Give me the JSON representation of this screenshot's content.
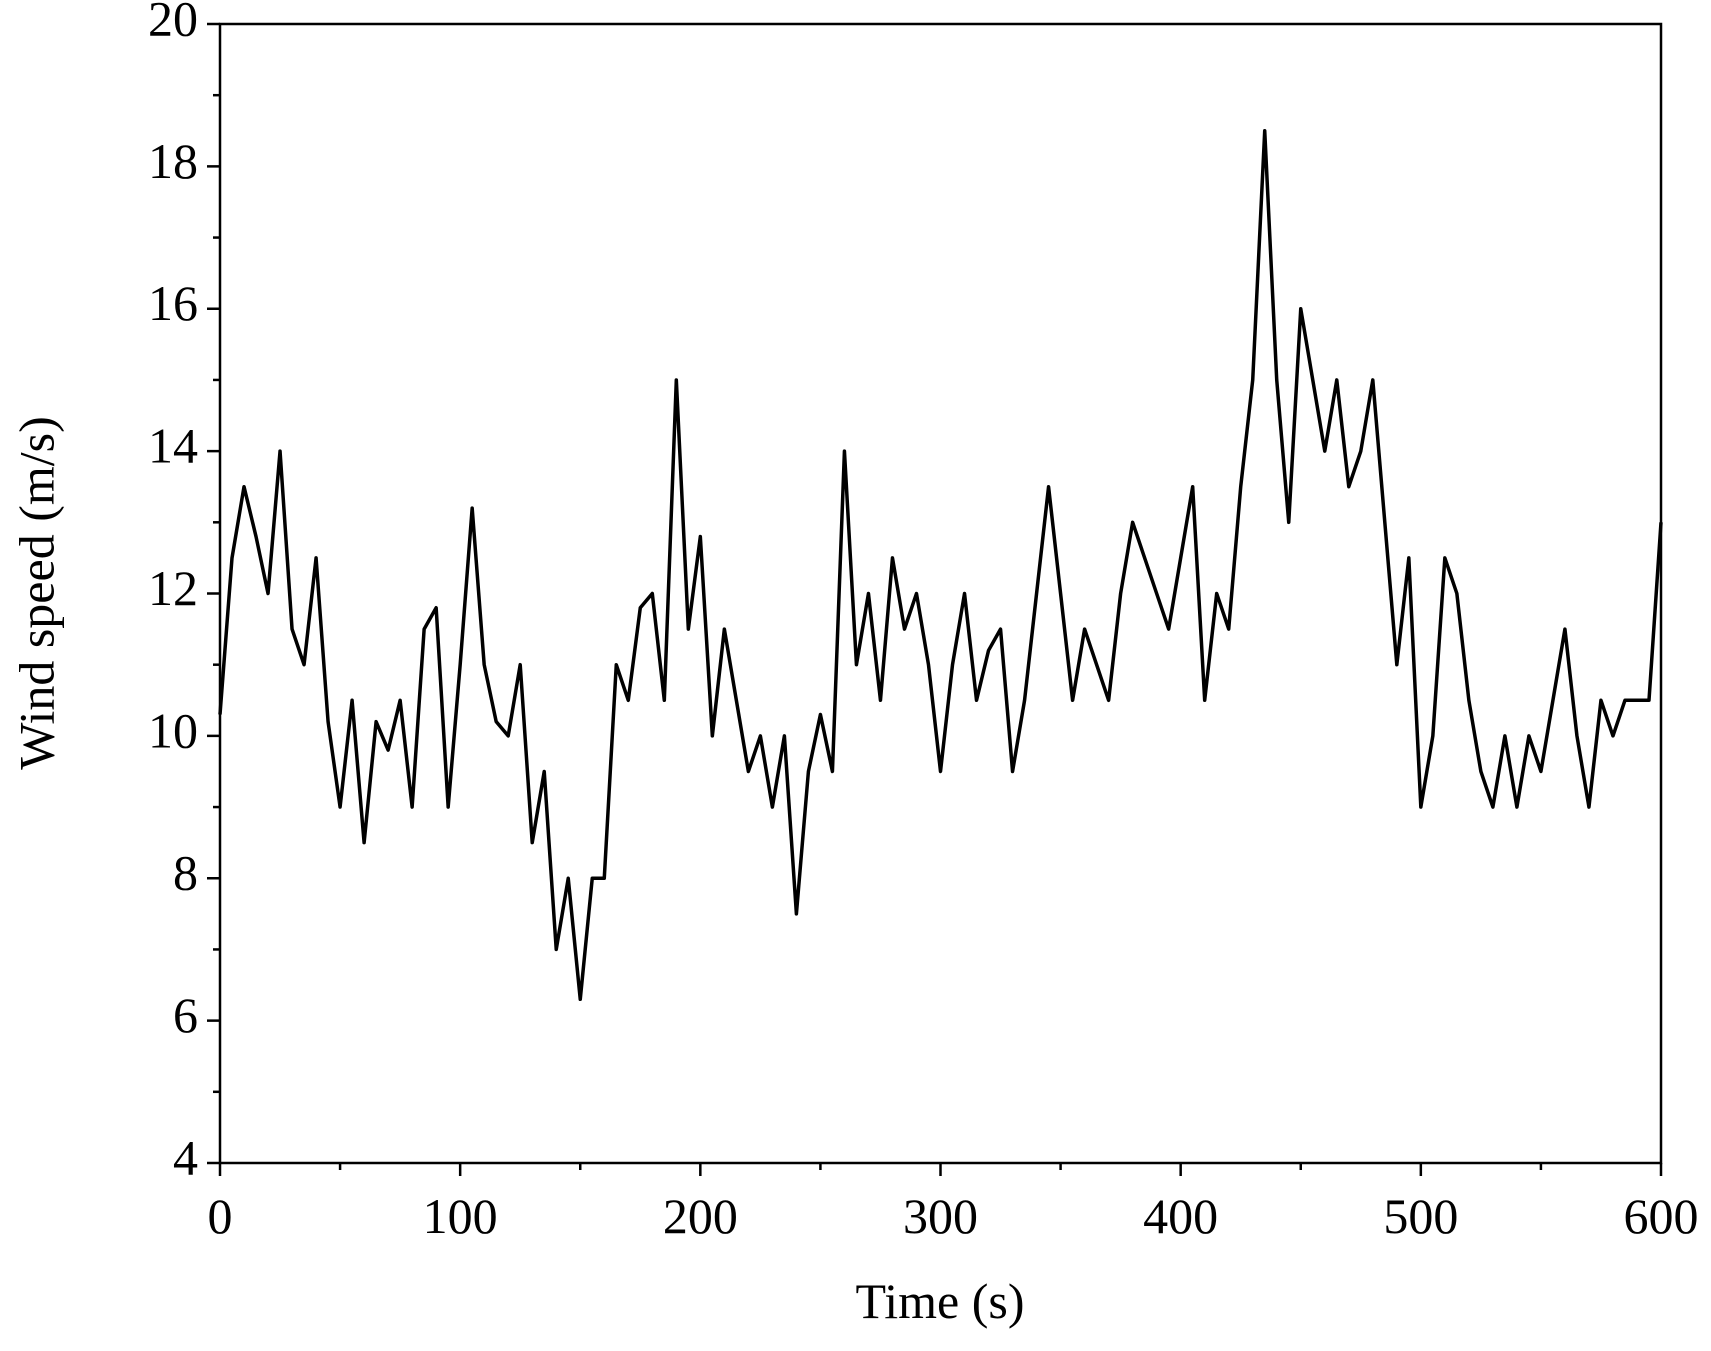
{
  "chart_data": {
    "type": "line",
    "xlabel": "Time (s)",
    "ylabel": "Wind speed (m/s)",
    "x": [
      0,
      5,
      10,
      15,
      20,
      25,
      30,
      35,
      40,
      45,
      50,
      55,
      60,
      65,
      70,
      75,
      80,
      85,
      90,
      95,
      100,
      105,
      110,
      115,
      120,
      125,
      130,
      135,
      140,
      145,
      150,
      155,
      160,
      165,
      170,
      175,
      180,
      185,
      190,
      195,
      200,
      205,
      210,
      215,
      220,
      225,
      230,
      235,
      240,
      245,
      250,
      255,
      260,
      265,
      270,
      275,
      280,
      285,
      290,
      295,
      300,
      305,
      310,
      315,
      320,
      325,
      330,
      335,
      340,
      345,
      350,
      355,
      360,
      365,
      370,
      375,
      380,
      385,
      390,
      395,
      400,
      405,
      410,
      415,
      420,
      425,
      430,
      435,
      440,
      445,
      450,
      455,
      460,
      465,
      470,
      475,
      480,
      485,
      490,
      495,
      500,
      505,
      510,
      515,
      520,
      525,
      530,
      535,
      540,
      545,
      550,
      555,
      560,
      565,
      570,
      575,
      580,
      585,
      590,
      595,
      600
    ],
    "series": [
      {
        "name": "Wind speed",
        "color": "#000000",
        "values": [
          10.3,
          12.5,
          13.5,
          12.8,
          12.0,
          14.0,
          11.5,
          11.0,
          12.5,
          10.2,
          9.0,
          10.5,
          8.5,
          10.2,
          9.8,
          10.5,
          9.0,
          11.5,
          11.8,
          9.0,
          11.0,
          13.2,
          11.0,
          10.2,
          10.0,
          11.0,
          8.5,
          9.5,
          7.0,
          8.0,
          6.3,
          8.0,
          8.0,
          11.0,
          10.5,
          11.8,
          12.0,
          10.5,
          15.0,
          11.5,
          12.8,
          10.0,
          11.5,
          10.5,
          9.5,
          10.0,
          9.0,
          10.0,
          7.5,
          9.5,
          10.3,
          9.5,
          14.0,
          11.0,
          12.0,
          10.5,
          12.5,
          11.5,
          12.0,
          11.0,
          9.5,
          11.0,
          12.0,
          10.5,
          11.2,
          11.5,
          9.5,
          10.5,
          12.0,
          13.5,
          12.0,
          10.5,
          11.5,
          11.0,
          10.5,
          12.0,
          13.0,
          12.5,
          12.0,
          11.5,
          12.5,
          13.5,
          10.5,
          12.0,
          11.5,
          13.5,
          15.0,
          18.5,
          15.0,
          13.0,
          16.0,
          15.0,
          14.0,
          15.0,
          13.5,
          14.0,
          15.0,
          13.0,
          11.0,
          12.5,
          9.0,
          10.0,
          12.5,
          12.0,
          10.5,
          9.5,
          9.0,
          10.0,
          9.0,
          10.0,
          9.5,
          10.5,
          11.5,
          10.0,
          9.0,
          10.5,
          10.0,
          10.5,
          10.5,
          10.5,
          13.0
        ]
      }
    ],
    "xlim": [
      0,
      600
    ],
    "xticks": [
      0,
      100,
      200,
      300,
      400,
      500,
      600
    ],
    "ylim": [
      4,
      20
    ],
    "yticks": [
      4,
      6,
      8,
      10,
      12,
      14,
      16,
      18,
      20
    ],
    "grid": false
  }
}
